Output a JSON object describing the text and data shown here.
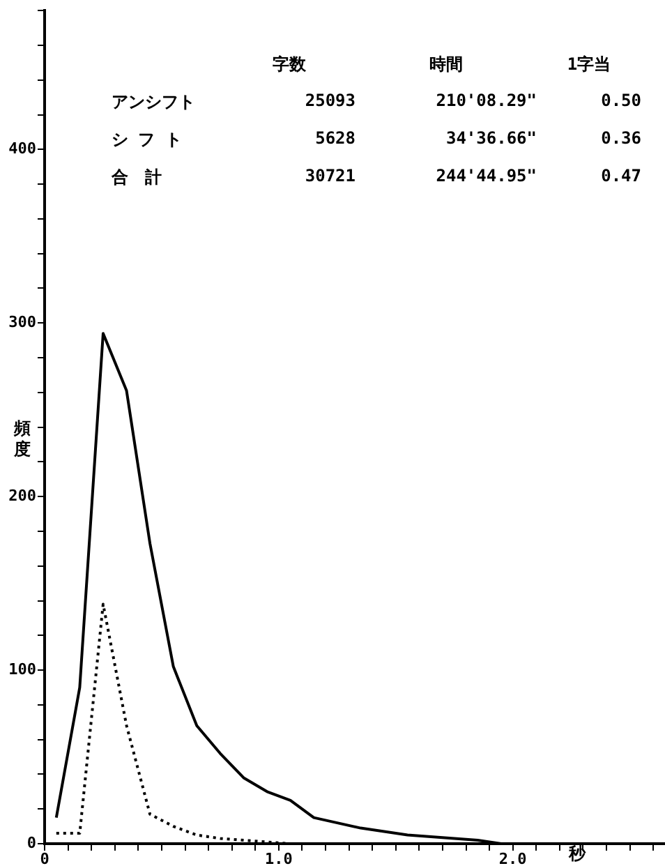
{
  "chart_data": {
    "type": "line",
    "xlabel": "秒",
    "ylabel": "頻度",
    "annotations": [
      "字数",
      "時間",
      "1字当",
      "アンシフト",
      "25093",
      "210'08.29\"",
      "0.50",
      "シ フ ト",
      "5628",
      "34'36.66\"",
      "0.36",
      "合　計",
      "30721",
      "244'44.95\"",
      "0.47"
    ],
    "x": [
      0.05,
      0.15,
      0.25,
      0.35,
      0.45,
      0.55,
      0.65,
      0.75,
      0.85,
      0.95,
      1.05,
      1.15,
      1.25,
      1.35,
      1.45,
      1.55,
      1.65,
      1.75,
      1.85,
      1.95,
      2.05,
      2.15,
      2.25,
      2.35,
      2.45,
      2.55
    ],
    "series": [
      {
        "color": "#000000",
        "line_style": "solid",
        "values": [
          15,
          90,
          294,
          261,
          173,
          102,
          68,
          52,
          38,
          30,
          25,
          15,
          12,
          9,
          7,
          5,
          4,
          3,
          2,
          0,
          0,
          0,
          0,
          0,
          0,
          0
        ]
      },
      {
        "color": "#000000",
        "line_style": "dotted",
        "values": [
          6,
          6,
          138,
          68,
          17,
          10,
          5,
          3,
          2,
          1,
          0,
          0,
          0,
          0,
          0,
          0,
          0,
          0,
          0,
          0,
          0,
          0,
          0,
          0,
          0,
          0
        ]
      }
    ],
    "xlim": [
      0,
      2.65
    ],
    "ylim": [
      0,
      480
    ],
    "xticks": [
      0,
      {
        "value": 0.1,
        "label": null
      },
      {
        "value": 0.2,
        "label": null
      },
      {
        "value": 0.3,
        "label": null
      },
      {
        "value": 0.4,
        "label": null
      },
      {
        "value": 0.5,
        "label": null
      },
      {
        "value": 0.6,
        "label": null
      },
      {
        "value": 0.7,
        "label": null
      },
      {
        "value": 0.8,
        "label": null
      },
      {
        "value": 0.9,
        "label": null
      },
      {
        "value": 1,
        "label": "1.0"
      },
      {
        "value": 1.1,
        "label": null
      },
      {
        "value": 1.2,
        "label": null
      },
      {
        "value": 1.3,
        "label": null
      },
      {
        "value": 1.4,
        "label": null
      },
      {
        "value": 1.5,
        "label": null
      },
      {
        "value": 1.6,
        "label": null
      },
      {
        "value": 1.7,
        "label": null
      },
      {
        "value": 1.8,
        "label": null
      },
      {
        "value": 1.9,
        "label": null
      },
      {
        "value": 2,
        "label": "2.0"
      },
      {
        "value": 2.1,
        "label": null
      },
      {
        "value": 2.2,
        "label": null
      },
      {
        "value": 2.3,
        "label": null
      },
      {
        "value": 2.4,
        "label": null
      },
      {
        "value": 2.5,
        "label": null
      },
      {
        "value": 2.6,
        "label": null
      }
    ],
    "yticks": [
      0,
      {
        "value": 20,
        "label": null
      },
      {
        "value": 40,
        "label": null
      },
      {
        "value": 60,
        "label": null
      },
      {
        "value": 80,
        "label": null
      },
      100,
      {
        "value": 120,
        "label": null
      },
      {
        "value": 140,
        "label": null
      },
      {
        "value": 160,
        "label": null
      },
      {
        "value": 180,
        "label": null
      },
      200,
      {
        "value": 220,
        "label": null
      },
      {
        "value": 240,
        "label": null
      },
      {
        "value": 260,
        "label": null
      },
      {
        "value": 280,
        "label": null
      },
      300,
      {
        "value": 320,
        "label": null
      },
      {
        "value": 340,
        "label": null
      },
      {
        "value": 360,
        "label": null
      },
      {
        "value": 380,
        "label": null
      },
      400,
      {
        "value": 420,
        "label": null
      },
      {
        "value": 440,
        "label": null
      },
      {
        "value": 460,
        "label": null
      },
      {
        "value": 480,
        "label": null
      }
    ],
    "grid": false,
    "legend": false,
    "marker": "none"
  }
}
